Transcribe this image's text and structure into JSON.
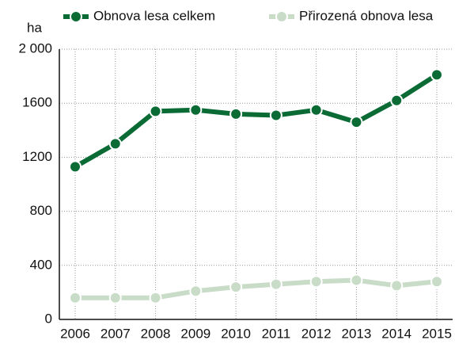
{
  "chart_data": {
    "type": "line",
    "y_label": "ha",
    "categories": [
      "2006",
      "2007",
      "2008",
      "2009",
      "2010",
      "2011",
      "2012",
      "2013",
      "2014",
      "2015"
    ],
    "series": [
      {
        "name": "Obnova lesa celkem",
        "color": "#0b6b35",
        "values": [
          1130,
          1300,
          1540,
          1550,
          1520,
          1510,
          1550,
          1460,
          1620,
          1810
        ]
      },
      {
        "name": "Přirozená obnova lesa",
        "color": "#c8dcc8",
        "values": [
          160,
          160,
          160,
          210,
          240,
          260,
          280,
          290,
          250,
          280
        ]
      }
    ],
    "ylim": [
      0,
      2000
    ],
    "yticks": [
      0,
      400,
      800,
      1200,
      {
        "value": 2000,
        "label": "2 000"
      },
      1600
    ],
    "grid": true
  }
}
